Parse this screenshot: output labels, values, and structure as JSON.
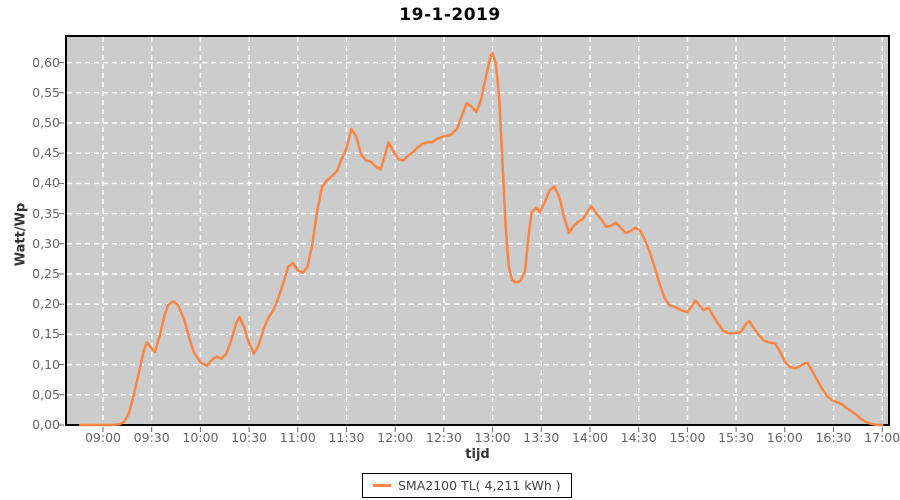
{
  "title": "19-1-2019",
  "legend": {
    "label": "SMA2100 TL( 4,211 kWh )",
    "position": "bottom-center"
  },
  "colors": {
    "series": "#f98545",
    "plot_background": "#cccccc",
    "gridline": "#ffffff",
    "plot_border": "#000000",
    "tick_mark": "#666666",
    "tick_text": "#666666",
    "title_text": "#000000",
    "axis_title_text": "#333333",
    "page_background": "#ffffff",
    "legend_border": "#000000",
    "legend_background": "#ffffff"
  },
  "chart_data": {
    "type": "line",
    "title": "19-1-2019",
    "xlabel": "tijd",
    "ylabel": "Watt/Wp",
    "grid": true,
    "legend_position": "bottom-center",
    "ylim": [
      0,
      0.648
    ],
    "xlim_time": [
      "08:37",
      "17:05"
    ],
    "x_tick_labels": [
      "09:00",
      "09:30",
      "10:00",
      "10:30",
      "11:00",
      "11:30",
      "12:00",
      "12:30",
      "13:00",
      "13:30",
      "14:00",
      "14:30",
      "15:00",
      "15:30",
      "16:00",
      "16:30",
      "17:00"
    ],
    "y_tick_values": [
      0,
      0.05,
      0.1,
      0.15,
      0.2,
      0.25,
      0.3,
      0.35,
      0.4,
      0.45,
      0.5,
      0.55,
      0.6
    ],
    "y_tick_labels": [
      "0,00",
      "0,05",
      "0,10",
      "0,15",
      "0,20",
      "0,25",
      "0,30",
      "0,35",
      "0,40",
      "0,45",
      "0,50",
      "0,55",
      "0,60"
    ],
    "series": [
      {
        "name": "SMA2100 TL( 4,211 kWh )",
        "color": "#f98545",
        "points": [
          [
            "08:46",
            0
          ],
          [
            "08:50",
            0
          ],
          [
            "08:55",
            0
          ],
          [
            "09:00",
            0
          ],
          [
            "09:05",
            0
          ],
          [
            "09:10",
            0.001
          ],
          [
            "09:13",
            0.005
          ],
          [
            "09:16",
            0.02
          ],
          [
            "09:19",
            0.05
          ],
          [
            "09:22",
            0.085
          ],
          [
            "09:25",
            0.122
          ],
          [
            "09:27",
            0.137
          ],
          [
            "09:30",
            0.127
          ],
          [
            "09:32",
            0.121
          ],
          [
            "09:35",
            0.148
          ],
          [
            "09:38",
            0.183
          ],
          [
            "09:40",
            0.198
          ],
          [
            "09:43",
            0.205
          ],
          [
            "09:46",
            0.199
          ],
          [
            "09:50",
            0.175
          ],
          [
            "09:53",
            0.145
          ],
          [
            "09:56",
            0.12
          ],
          [
            "10:00",
            0.104
          ],
          [
            "10:04",
            0.098
          ],
          [
            "10:07",
            0.108
          ],
          [
            "10:10",
            0.113
          ],
          [
            "10:13",
            0.11
          ],
          [
            "10:16",
            0.118
          ],
          [
            "10:19",
            0.14
          ],
          [
            "10:22",
            0.168
          ],
          [
            "10:24",
            0.179
          ],
          [
            "10:27",
            0.162
          ],
          [
            "10:30",
            0.135
          ],
          [
            "10:33",
            0.118
          ],
          [
            "10:36",
            0.133
          ],
          [
            "10:39",
            0.16
          ],
          [
            "10:42",
            0.178
          ],
          [
            "10:45",
            0.19
          ],
          [
            "10:48",
            0.21
          ],
          [
            "10:51",
            0.235
          ],
          [
            "10:54",
            0.262
          ],
          [
            "10:57",
            0.268
          ],
          [
            "11:00",
            0.256
          ],
          [
            "11:03",
            0.252
          ],
          [
            "11:06",
            0.262
          ],
          [
            "11:09",
            0.3
          ],
          [
            "11:12",
            0.355
          ],
          [
            "11:15",
            0.395
          ],
          [
            "11:18",
            0.405
          ],
          [
            "11:21",
            0.412
          ],
          [
            "11:24",
            0.42
          ],
          [
            "11:27",
            0.44
          ],
          [
            "11:30",
            0.458
          ],
          [
            "11:33",
            0.49
          ],
          [
            "11:36",
            0.478
          ],
          [
            "11:39",
            0.448
          ],
          [
            "11:42",
            0.438
          ],
          [
            "11:45",
            0.436
          ],
          [
            "11:48",
            0.428
          ],
          [
            "11:51",
            0.423
          ],
          [
            "11:54",
            0.45
          ],
          [
            "11:56",
            0.468
          ],
          [
            "11:59",
            0.452
          ],
          [
            "12:02",
            0.44
          ],
          [
            "12:05",
            0.438
          ],
          [
            "12:08",
            0.446
          ],
          [
            "12:11",
            0.452
          ],
          [
            "12:14",
            0.46
          ],
          [
            "12:17",
            0.466
          ],
          [
            "12:20",
            0.468
          ],
          [
            "12:23",
            0.468
          ],
          [
            "12:26",
            0.474
          ],
          [
            "12:30",
            0.478
          ],
          [
            "12:34",
            0.48
          ],
          [
            "12:38",
            0.49
          ],
          [
            "12:41",
            0.512
          ],
          [
            "12:44",
            0.533
          ],
          [
            "12:47",
            0.527
          ],
          [
            "12:50",
            0.518
          ],
          [
            "12:53",
            0.54
          ],
          [
            "12:56",
            0.578
          ],
          [
            "12:59",
            0.613
          ],
          [
            "13:00",
            0.615
          ],
          [
            "13:02",
            0.598
          ],
          [
            "13:04",
            0.545
          ],
          [
            "13:06",
            0.44
          ],
          [
            "13:08",
            0.33
          ],
          [
            "13:10",
            0.262
          ],
          [
            "13:12",
            0.24
          ],
          [
            "13:14",
            0.236
          ],
          [
            "13:17",
            0.238
          ],
          [
            "13:20",
            0.255
          ],
          [
            "13:22",
            0.31
          ],
          [
            "13:24",
            0.352
          ],
          [
            "13:27",
            0.36
          ],
          [
            "13:29",
            0.352
          ],
          [
            "13:32",
            0.368
          ],
          [
            "13:35",
            0.388
          ],
          [
            "13:38",
            0.395
          ],
          [
            "13:41",
            0.378
          ],
          [
            "13:44",
            0.345
          ],
          [
            "13:47",
            0.318
          ],
          [
            "13:50",
            0.33
          ],
          [
            "13:53",
            0.337
          ],
          [
            "13:56",
            0.342
          ],
          [
            "13:59",
            0.356
          ],
          [
            "14:01",
            0.362
          ],
          [
            "14:04",
            0.35
          ],
          [
            "14:07",
            0.34
          ],
          [
            "14:10",
            0.328
          ],
          [
            "14:13",
            0.33
          ],
          [
            "14:16",
            0.335
          ],
          [
            "14:19",
            0.326
          ],
          [
            "14:22",
            0.318
          ],
          [
            "14:25",
            0.321
          ],
          [
            "14:28",
            0.327
          ],
          [
            "14:31",
            0.322
          ],
          [
            "14:34",
            0.305
          ],
          [
            "14:37",
            0.285
          ],
          [
            "14:40",
            0.26
          ],
          [
            "14:43",
            0.232
          ],
          [
            "14:46",
            0.21
          ],
          [
            "14:49",
            0.198
          ],
          [
            "14:52",
            0.196
          ],
          [
            "14:56",
            0.19
          ],
          [
            "15:00",
            0.187
          ],
          [
            "15:03",
            0.198
          ],
          [
            "15:05",
            0.206
          ],
          [
            "15:08",
            0.196
          ],
          [
            "15:10",
            0.19
          ],
          [
            "15:13",
            0.194
          ],
          [
            "15:16",
            0.18
          ],
          [
            "15:19",
            0.168
          ],
          [
            "15:22",
            0.156
          ],
          [
            "15:25",
            0.152
          ],
          [
            "15:29",
            0.152
          ],
          [
            "15:33",
            0.154
          ],
          [
            "15:36",
            0.167
          ],
          [
            "15:38",
            0.172
          ],
          [
            "15:41",
            0.16
          ],
          [
            "15:44",
            0.149
          ],
          [
            "15:47",
            0.14
          ],
          [
            "15:50",
            0.137
          ],
          [
            "15:54",
            0.135
          ],
          [
            "15:57",
            0.122
          ],
          [
            "16:00",
            0.105
          ],
          [
            "16:03",
            0.096
          ],
          [
            "16:06",
            0.094
          ],
          [
            "16:09",
            0.097
          ],
          [
            "16:12",
            0.102
          ],
          [
            "16:14",
            0.103
          ],
          [
            "16:17",
            0.089
          ],
          [
            "16:20",
            0.074
          ],
          [
            "16:23",
            0.06
          ],
          [
            "16:26",
            0.048
          ],
          [
            "16:29",
            0.041
          ],
          [
            "16:32",
            0.038
          ],
          [
            "16:35",
            0.035
          ],
          [
            "16:38",
            0.028
          ],
          [
            "16:41",
            0.023
          ],
          [
            "16:44",
            0.017
          ],
          [
            "16:47",
            0.01
          ],
          [
            "16:50",
            0.005
          ],
          [
            "16:53",
            0.002
          ],
          [
            "16:57",
            0
          ],
          [
            "17:00",
            0
          ]
        ]
      }
    ]
  }
}
